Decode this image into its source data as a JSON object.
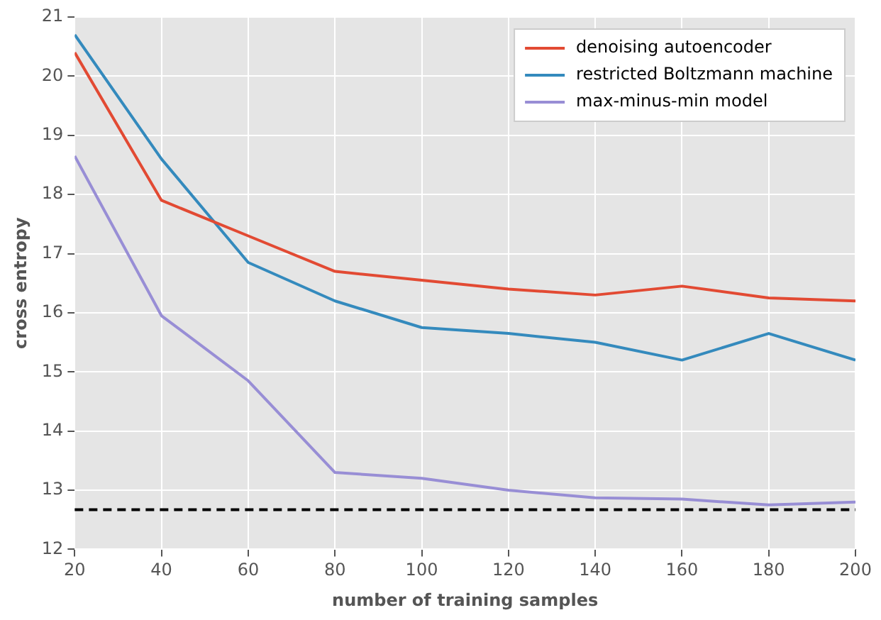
{
  "chart_data": {
    "type": "line",
    "xlabel": "number of training samples",
    "ylabel": "cross entropy",
    "x": [
      20,
      40,
      60,
      80,
      100,
      120,
      140,
      160,
      180,
      200
    ],
    "series": [
      {
        "name": "denoising autoencoder",
        "color": "#e24a33",
        "values": [
          20.4,
          17.9,
          17.3,
          16.7,
          16.55,
          16.4,
          16.3,
          16.45,
          16.25,
          16.2
        ]
      },
      {
        "name": "restricted Boltzmann machine",
        "color": "#348abd",
        "values": [
          20.7,
          18.6,
          16.85,
          16.2,
          15.75,
          15.65,
          15.5,
          15.2,
          15.65,
          15.2
        ]
      },
      {
        "name": "max-minus-min model",
        "color": "#988ed5",
        "values": [
          18.65,
          15.95,
          14.85,
          13.3,
          13.2,
          13.0,
          12.87,
          12.85,
          12.75,
          12.8
        ]
      }
    ],
    "ref_lines": [
      {
        "axis": "y",
        "value": 12.67,
        "color": "#000000",
        "line_style": "dashed"
      }
    ],
    "xlim": [
      20,
      200
    ],
    "xticks": [
      20,
      40,
      60,
      80,
      100,
      120,
      140,
      160,
      180,
      200
    ],
    "ylim": [
      12,
      21
    ],
    "yticks": [
      12,
      13,
      14,
      15,
      16,
      17,
      18,
      19,
      20,
      21
    ],
    "grid": true,
    "legend": "top right",
    "marker": "none",
    "line_style": "solid"
  }
}
